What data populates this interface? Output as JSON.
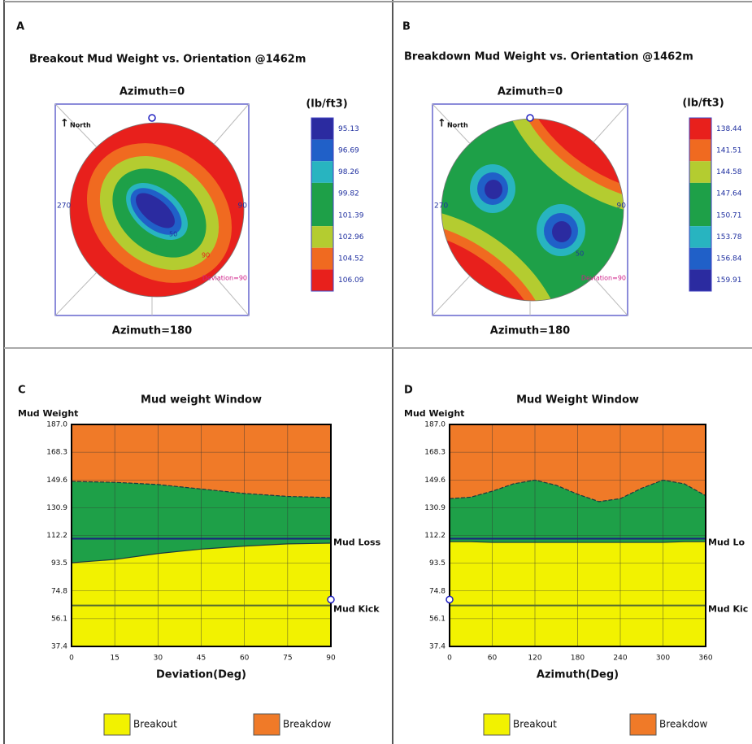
{
  "chart_data": [
    {
      "type": "contour",
      "panel": "A",
      "title": "Breakout Mud Weight vs. Orientation @1462m",
      "top_label": "Azimuth=0",
      "bottom_label": "Azimuth=180",
      "left_label": "270",
      "right_label": "90",
      "north_label": "North",
      "rim_label": "Deviation=90",
      "inner_labels": [
        "50",
        "90"
      ],
      "unit": "(lb/ft3)",
      "levels": [
        95.13,
        96.69,
        98.26,
        99.82,
        101.39,
        102.96,
        104.52,
        106.09
      ],
      "level_colors": [
        "#2b2ba0",
        "#2060c8",
        "#28b4c0",
        "#1ea048",
        "#1ea048",
        "#b4cc30",
        "#f06a20",
        "#e8201c"
      ]
    },
    {
      "type": "contour",
      "panel": "B",
      "title": "Breakdown Mud Weight vs. Orientation @1462m",
      "top_label": "Azimuth=0",
      "bottom_label": "Azimuth=180",
      "left_label": "270",
      "right_label": "90",
      "north_label": "North",
      "rim_label": "Deviation=90",
      "inner_labels": [
        "50"
      ],
      "unit": "(lb/ft3)",
      "levels": [
        138.44,
        141.51,
        144.58,
        147.64,
        150.71,
        153.78,
        156.84,
        159.91
      ],
      "level_colors": [
        "#e8201c",
        "#f06a20",
        "#b4cc30",
        "#1ea048",
        "#1ea048",
        "#28b4c0",
        "#2060c8",
        "#2b2ba0"
      ]
    },
    {
      "type": "area",
      "panel": "C",
      "title": "Mud weight Window",
      "ylabel": "Mud Weight",
      "xlabel": "Deviation(Deg)",
      "x": [
        0,
        15,
        30,
        45,
        60,
        75,
        90
      ],
      "xlim": [
        0,
        90
      ],
      "xticks": [
        0,
        15,
        30,
        45,
        60,
        75,
        90
      ],
      "ylim": [
        37.4,
        187
      ],
      "yticks": [
        37.4,
        56.1,
        74.8,
        93.5,
        112.2,
        130.9,
        149.6,
        168.3,
        {
          "value": 187,
          "label": "187.0"
        }
      ],
      "background_color": "#f07a28",
      "window_color": "#1ea048",
      "grid": true,
      "series": [
        {
          "name": "Breakout",
          "color": "#f2f200",
          "values": [
            93.8,
            96,
            100,
            103,
            105,
            106.5,
            107
          ]
        },
        {
          "name": "Breakdow",
          "color": "#f07a28",
          "values": [
            148.6,
            148,
            146.5,
            143.5,
            140.5,
            138.5,
            137.7
          ]
        }
      ],
      "limits": [
        {
          "label": "Mud Loss",
          "value": 110,
          "color": "#1a237e"
        },
        {
          "label": "Mud Kick",
          "value": 65,
          "color": "#556b2f"
        }
      ],
      "marker": {
        "x": 90,
        "y": 69
      }
    },
    {
      "type": "area",
      "panel": "D",
      "title": "Mud Weight Window",
      "ylabel": "Mud Weight",
      "xlabel": "Azimuth(Deg)",
      "x": [
        0,
        30,
        60,
        90,
        120,
        150,
        180,
        210,
        240,
        270,
        300,
        330,
        360
      ],
      "xlim": [
        0,
        360
      ],
      "xticks": [
        0,
        60,
        120,
        180,
        240,
        300,
        360
      ],
      "ylim": [
        37.4,
        187
      ],
      "yticks": [
        37.4,
        56.1,
        74.8,
        93.5,
        112.2,
        130.9,
        149.6,
        168.3,
        {
          "value": 187,
          "label": "187.0"
        }
      ],
      "background_color": "#f07a28",
      "window_color": "#1ea048",
      "grid": true,
      "series": [
        {
          "name": "Breakout",
          "color": "#f2f200",
          "values": [
            108,
            108,
            107.5,
            107.5,
            107.5,
            107.5,
            107.5,
            107.5,
            107.5,
            107.5,
            107.5,
            108,
            108
          ]
        },
        {
          "name": "Breakdow",
          "color": "#f07a28",
          "values": [
            137,
            138,
            142,
            147,
            149.5,
            146,
            140,
            135,
            137,
            144,
            149.5,
            147,
            139
          ]
        }
      ],
      "limits": [
        {
          "label": "Mud Lo",
          "value": 110,
          "color": "#1a237e"
        },
        {
          "label": "Mud Kic",
          "value": 65,
          "color": "#556b2f"
        }
      ],
      "marker": {
        "x": 0,
        "y": 69
      }
    }
  ]
}
